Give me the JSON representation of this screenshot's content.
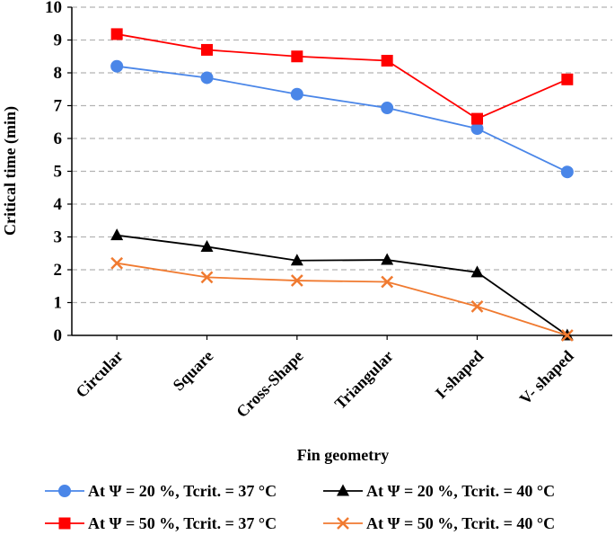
{
  "chart_data": {
    "type": "line",
    "title": "",
    "xlabel": "Fin geometry",
    "ylabel": "Critical time (min)",
    "categories": [
      "Circular",
      "Square",
      "Cross-Shape",
      "Triangular",
      "I-shaped",
      "V- shaped"
    ],
    "ylim": [
      0,
      10
    ],
    "yticks": [
      "0",
      "1",
      "2",
      "3",
      "4",
      "5",
      "6",
      "7",
      "8",
      "9",
      "10"
    ],
    "grid": "horizontal dashed",
    "legend_position": "bottom",
    "series": [
      {
        "name": "At Ψ = 20 %, Tcrit. = 37 °C",
        "color": "#4A86E8",
        "marker": "circle",
        "values": [
          8.2,
          7.85,
          7.35,
          6.93,
          6.3,
          4.98
        ]
      },
      {
        "name": "At Ψ = 20 %, Tcrit. = 40 °C",
        "color": "#000000",
        "marker": "triangle",
        "values": [
          3.05,
          2.7,
          2.28,
          2.3,
          1.92,
          0.0
        ]
      },
      {
        "name": "At Ψ = 50 %, Tcrit. = 37 °C",
        "color": "#FF0000",
        "marker": "square",
        "values": [
          9.18,
          8.7,
          8.5,
          8.37,
          6.6,
          7.8
        ]
      },
      {
        "name": "At Ψ = 50 %, Tcrit. = 40 °C",
        "color": "#F07A30",
        "marker": "x",
        "values": [
          2.2,
          1.77,
          1.67,
          1.63,
          0.88,
          0.0
        ]
      }
    ]
  }
}
